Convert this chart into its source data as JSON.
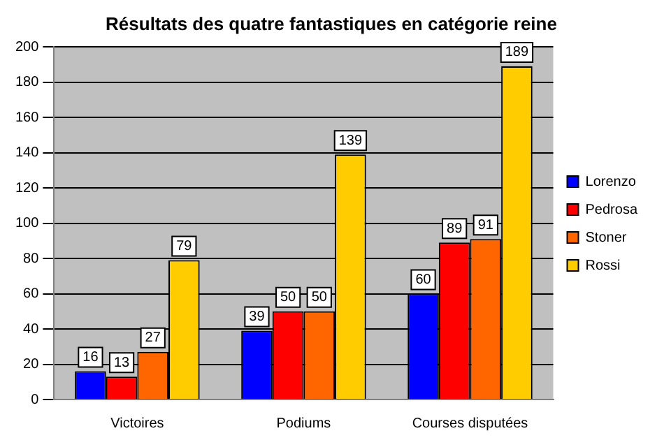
{
  "chart_data": {
    "type": "bar",
    "title": "Résultats des quatre fantastiques en catégorie reine",
    "categories": [
      "Victoires",
      "Podiums",
      "Courses disputées"
    ],
    "series": [
      {
        "name": "Lorenzo",
        "color": "#0000ff",
        "values": [
          16,
          39,
          60
        ]
      },
      {
        "name": "Pedrosa",
        "color": "#ff0000",
        "values": [
          13,
          50,
          89
        ]
      },
      {
        "name": "Stoner",
        "color": "#ff6600",
        "values": [
          27,
          50,
          91
        ]
      },
      {
        "name": "Rossi",
        "color": "#ffcc00",
        "values": [
          79,
          139,
          189
        ]
      }
    ],
    "ylim": [
      0,
      200
    ],
    "yticks": [
      0,
      20,
      40,
      60,
      80,
      100,
      120,
      140,
      160,
      180,
      200
    ],
    "grid": "y",
    "legend": "right",
    "data_labels": true
  }
}
